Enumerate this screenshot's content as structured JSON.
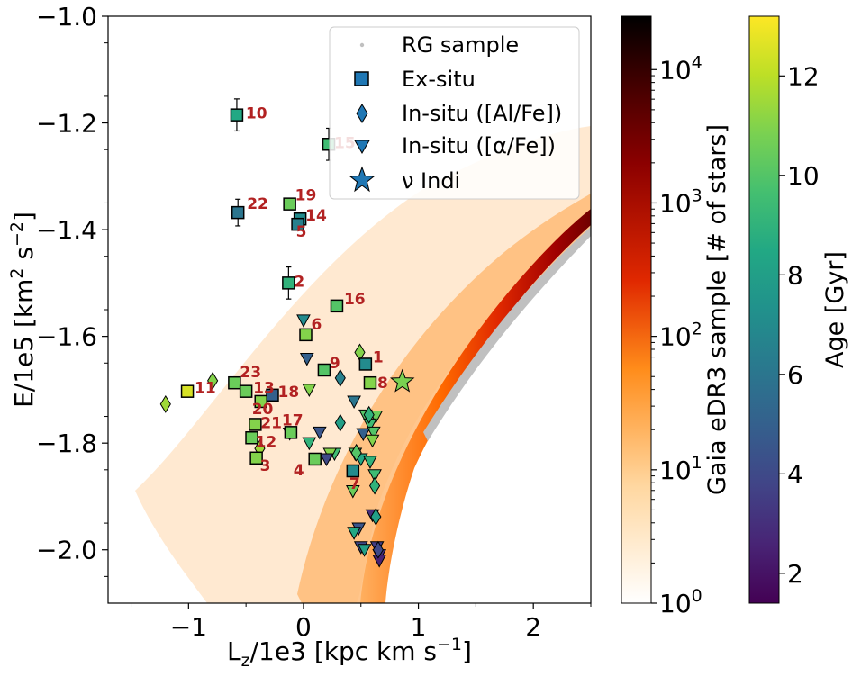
{
  "chart_data": {
    "type": "scatter",
    "xlabel": "L",
    "xlabel_sub": "z",
    "xlabel_rest": "/1e3 [kpc km s",
    "xlabel_sup": "−1",
    "xlabel_end": "]",
    "ylabel": "E/1e5 [km",
    "ylabel_sup1": "2",
    "ylabel_mid": " s",
    "ylabel_sup2": "−2",
    "ylabel_end": "]",
    "xlim": [
      -1.7,
      2.5
    ],
    "ylim": [
      -2.1,
      -1.0
    ],
    "xticks": [
      {
        "v": -1,
        "t": "−1"
      },
      {
        "v": 0,
        "t": "0"
      },
      {
        "v": 1,
        "t": "1"
      },
      {
        "v": 2,
        "t": "2"
      }
    ],
    "yticks": [
      {
        "v": -1.0,
        "t": "−1.0"
      },
      {
        "v": -1.2,
        "t": "−1.2"
      },
      {
        "v": -1.4,
        "t": "−1.4"
      },
      {
        "v": -1.6,
        "t": "−1.6"
      },
      {
        "v": -1.8,
        "t": "−1.8"
      },
      {
        "v": -2.0,
        "t": "−2.0"
      }
    ],
    "legend": [
      "RG sample",
      "Ex-situ",
      "In-situ ([Al/Fe])",
      "In-situ ([α/Fe])",
      "ν Indi"
    ],
    "density_colorbar": {
      "label": "Gaia eDR3 sample [# of stars]",
      "ticks": [
        {
          "exp": 0,
          "t": "0"
        },
        {
          "exp": 1,
          "t": "1"
        },
        {
          "exp": 2,
          "t": "2"
        },
        {
          "exp": 3,
          "t": "3"
        },
        {
          "exp": 4,
          "t": "4"
        }
      ],
      "base": "10",
      "max_exp": 4.4
    },
    "age_colorbar": {
      "label": "Age [Gyr]",
      "range": [
        1.4,
        13.2
      ],
      "ticks": [
        {
          "v": 2,
          "t": "2"
        },
        {
          "v": 4,
          "t": "4"
        },
        {
          "v": 6,
          "t": "6"
        },
        {
          "v": 8,
          "t": "8"
        },
        {
          "v": 10,
          "t": "10"
        },
        {
          "v": 12,
          "t": "12"
        }
      ]
    },
    "ex_situ": [
      {
        "id": "10",
        "x": -0.58,
        "y": -1.185,
        "age": 8.5,
        "err": 0.03
      },
      {
        "id": "15",
        "x": 0.22,
        "y": -1.24,
        "age": 9.5,
        "err": 0.03
      },
      {
        "id": "22",
        "x": -0.57,
        "y": -1.368,
        "age": 6.0,
        "err": 0.025
      },
      {
        "id": "19",
        "x": -0.12,
        "y": -1.352,
        "age": 10.5,
        "err": 0.0
      },
      {
        "id": "14",
        "x": -0.03,
        "y": -1.38,
        "age": 7.0,
        "err": 0.0
      },
      {
        "id": "5",
        "x": -0.05,
        "y": -1.39,
        "age": 6.5,
        "err": 0.0
      },
      {
        "id": "2",
        "x": -0.13,
        "y": -1.5,
        "age": 9.0,
        "err": 0.03
      },
      {
        "id": "16",
        "x": 0.29,
        "y": -1.543,
        "age": 10.0,
        "err": 0.0
      },
      {
        "id": "6",
        "x": 0.02,
        "y": -1.597,
        "age": 11.0,
        "err": 0.0
      },
      {
        "id": "1",
        "x": 0.54,
        "y": -1.652,
        "age": 7.0,
        "err": 0.0
      },
      {
        "id": "9",
        "x": 0.18,
        "y": -1.663,
        "age": 10.0,
        "err": 0.0
      },
      {
        "id": "8",
        "x": 0.58,
        "y": -1.687,
        "age": 11.0,
        "err": 0.0
      },
      {
        "id": "23",
        "x": -0.6,
        "y": -1.687,
        "age": 10.5,
        "err": 0.0
      },
      {
        "id": "11",
        "x": -1.01,
        "y": -1.703,
        "age": 12.5,
        "err": 0.0
      },
      {
        "id": "13",
        "x": -0.5,
        "y": -1.703,
        "age": 10.5,
        "err": 0.0
      },
      {
        "id": "18",
        "x": -0.27,
        "y": -1.71,
        "age": 5.0,
        "err": 0.0
      },
      {
        "id": "20",
        "x": -0.37,
        "y": -1.722,
        "age": 11.0,
        "err": 0.0
      },
      {
        "id": "21",
        "x": -0.42,
        "y": -1.765,
        "age": 11.0,
        "err": 0.0
      },
      {
        "id": "17",
        "x": -0.11,
        "y": -1.78,
        "age": 10.5,
        "err": 0.0
      },
      {
        "id": "12",
        "x": -0.45,
        "y": -1.79,
        "age": 10.5,
        "err": 0.0
      },
      {
        "id": "3",
        "x": -0.41,
        "y": -1.828,
        "age": 11.0,
        "err": 0.0
      },
      {
        "id": "4",
        "x": 0.1,
        "y": -1.83,
        "age": 10.5,
        "err": 0.0
      },
      {
        "id": "7",
        "x": 0.43,
        "y": -1.852,
        "age": 7.0,
        "err": 0.0
      }
    ],
    "in_situ_al": [
      {
        "x": -1.2,
        "y": -1.727,
        "age": 11.5
      },
      {
        "x": -0.79,
        "y": -1.683,
        "age": 11.0
      },
      {
        "x": -0.38,
        "y": -1.81,
        "age": 11.5
      },
      {
        "x": 0.49,
        "y": -1.63,
        "age": 11.0
      },
      {
        "x": 0.32,
        "y": -1.678,
        "age": 6.5
      },
      {
        "x": 0.32,
        "y": -1.762,
        "age": 8.0
      },
      {
        "x": 0.46,
        "y": -1.818,
        "age": 10.0
      },
      {
        "x": 0.57,
        "y": -1.747,
        "age": 9.0
      },
      {
        "x": 0.62,
        "y": -1.88,
        "age": 9.0
      },
      {
        "x": 0.63,
        "y": -1.938,
        "age": 8.0
      },
      {
        "x": 0.65,
        "y": -2.0,
        "age": 4.0
      }
    ],
    "in_situ_alpha": [
      {
        "x": 0.0,
        "y": -1.57,
        "age": 7.0
      },
      {
        "x": 0.03,
        "y": -1.642,
        "age": 5.0
      },
      {
        "x": 0.05,
        "y": -1.7,
        "age": 11.0
      },
      {
        "x": 0.44,
        "y": -1.722,
        "age": 6.0
      },
      {
        "x": 0.54,
        "y": -1.748,
        "age": 10.0
      },
      {
        "x": 0.63,
        "y": -1.75,
        "age": 10.5
      },
      {
        "x": 0.58,
        "y": -1.765,
        "age": 9.5
      },
      {
        "x": 0.61,
        "y": -1.78,
        "age": 10.0
      },
      {
        "x": 0.52,
        "y": -1.783,
        "age": 5.0
      },
      {
        "x": 0.6,
        "y": -1.795,
        "age": 11.0
      },
      {
        "x": 0.14,
        "y": -1.78,
        "age": 4.5
      },
      {
        "x": -0.12,
        "y": -1.782,
        "age": 8.5
      },
      {
        "x": 0.05,
        "y": -1.8,
        "age": 9.0
      },
      {
        "x": 0.27,
        "y": -1.82,
        "age": 9.5
      },
      {
        "x": 0.23,
        "y": -1.82,
        "age": 11.0
      },
      {
        "x": 0.2,
        "y": -1.83,
        "age": 4.0
      },
      {
        "x": 0.45,
        "y": -1.82,
        "age": 10.0
      },
      {
        "x": 0.5,
        "y": -1.83,
        "age": 8.5
      },
      {
        "x": 0.58,
        "y": -1.835,
        "age": 9.0
      },
      {
        "x": 0.62,
        "y": -1.86,
        "age": 9.5
      },
      {
        "x": 0.43,
        "y": -1.89,
        "age": 10.5
      },
      {
        "x": 0.6,
        "y": -1.935,
        "age": 3.0
      },
      {
        "x": 0.48,
        "y": -1.96,
        "age": 4.5
      },
      {
        "x": 0.44,
        "y": -1.968,
        "age": 8.5
      },
      {
        "x": 0.5,
        "y": -1.995,
        "age": 4.0
      },
      {
        "x": 0.64,
        "y": -1.995,
        "age": 3.5
      },
      {
        "x": 0.66,
        "y": -2.01,
        "age": 3.0
      },
      {
        "x": 0.53,
        "y": -2.0,
        "age": 8.0
      },
      {
        "x": 0.66,
        "y": -2.02,
        "age": 2.5
      }
    ],
    "nu_indi": {
      "x": 0.86,
      "y": -1.685,
      "label": "ν Indi"
    }
  },
  "colors": {
    "ex_situ_legend": "#1f77b4",
    "nu_indi": "#1f77b4",
    "rg_sample": "#c0c0c0",
    "annotation": "#b22222"
  }
}
